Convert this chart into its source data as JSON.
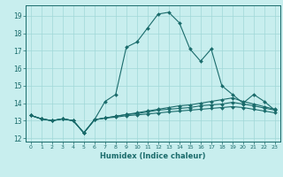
{
  "xlabel": "Humidex (Indice chaleur)",
  "bg_color": "#c8eeee",
  "line_color": "#1a6b6b",
  "grid_color": "#a0d8d8",
  "xlim": [
    -0.5,
    23.5
  ],
  "ylim": [
    11.8,
    19.6
  ],
  "yticks": [
    12,
    13,
    14,
    15,
    16,
    17,
    18,
    19
  ],
  "xticks": [
    0,
    1,
    2,
    3,
    4,
    5,
    6,
    7,
    8,
    9,
    10,
    11,
    12,
    13,
    14,
    15,
    16,
    17,
    18,
    19,
    20,
    21,
    22,
    23
  ],
  "series": [
    [
      13.3,
      13.1,
      13.0,
      13.1,
      13.0,
      12.3,
      13.05,
      14.1,
      14.5,
      17.2,
      17.5,
      18.3,
      19.1,
      19.2,
      18.6,
      17.1,
      16.4,
      17.1,
      15.0,
      14.5,
      14.0,
      14.5,
      14.1,
      13.6
    ],
    [
      13.3,
      13.1,
      13.0,
      13.1,
      13.0,
      12.3,
      13.05,
      13.15,
      13.25,
      13.35,
      13.45,
      13.55,
      13.65,
      13.75,
      13.85,
      13.9,
      14.0,
      14.1,
      14.2,
      14.3,
      14.1,
      13.95,
      13.8,
      13.65
    ],
    [
      13.3,
      13.1,
      13.0,
      13.1,
      13.0,
      12.3,
      13.05,
      13.15,
      13.25,
      13.35,
      13.4,
      13.5,
      13.6,
      13.65,
      13.7,
      13.75,
      13.85,
      13.9,
      13.95,
      14.05,
      13.95,
      13.85,
      13.72,
      13.6
    ],
    [
      13.3,
      13.1,
      13.0,
      13.1,
      13.0,
      12.3,
      13.05,
      13.15,
      13.2,
      13.28,
      13.33,
      13.38,
      13.44,
      13.5,
      13.55,
      13.6,
      13.65,
      13.7,
      13.75,
      13.8,
      13.75,
      13.65,
      13.55,
      13.45
    ]
  ]
}
